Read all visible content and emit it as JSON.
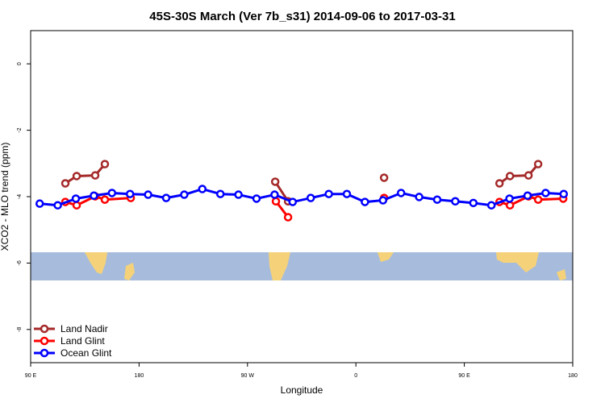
{
  "chart_data": {
    "type": "line",
    "title": "45S-30S March (Ver 7b_s31)   2014-09-06 to 2017-03-31",
    "x_label": "Longitude",
    "y_label": "XCO2 - MLO trend (ppm)",
    "xlim": [
      90,
      540
    ],
    "xticks": [
      {
        "value": 90,
        "label": "90 E"
      },
      {
        "value": 180,
        "label": "180"
      },
      {
        "value": 270,
        "label": "90 W"
      },
      {
        "value": 360,
        "label": "0"
      },
      {
        "value": 450,
        "label": "90 E"
      },
      {
        "value": 540,
        "label": "180"
      }
    ],
    "ylim": [
      -9,
      1
    ],
    "yticks": [
      0,
      -2,
      -4,
      -6,
      -8
    ],
    "legend": "bottom-left",
    "series": [
      {
        "name": "Land Nadir",
        "color": "#a52a2a",
        "x": [
          118.8,
          128.2,
          143.6,
          151.6,
          null,
          293.0,
          303.7,
          null,
          383.4,
          null,
          479.2,
          487.9,
          503.3,
          511.3
        ],
        "values": [
          -3.6,
          -3.38,
          -3.36,
          -3.02,
          null,
          -3.55,
          -4.14,
          null,
          -3.43,
          null,
          -3.6,
          -3.38,
          -3.36,
          -3.02
        ]
      },
      {
        "name": "Land Glint",
        "color": "#ff0000",
        "x": [
          118.8,
          128.2,
          143.6,
          151.6,
          173.1,
          null,
          293.6,
          303.7,
          null,
          383.4,
          null,
          479.2,
          487.9,
          503.3,
          511.3,
          532.1
        ],
        "values": [
          -4.16,
          -4.26,
          -3.99,
          -4.09,
          -4.04,
          null,
          -4.14,
          -4.62,
          null,
          -4.04,
          null,
          -4.16,
          -4.26,
          -3.99,
          -4.09,
          -4.06
        ]
      },
      {
        "name": "Ocean Glint",
        "color": "#0000ff",
        "x": [
          97.5,
          112.5,
          127.5,
          142.5,
          157.5,
          172.5,
          187.5,
          202.5,
          217.5,
          232.5,
          247.5,
          262.5,
          277.5,
          292.5,
          307.5,
          322.5,
          337.5,
          352.5,
          367.5,
          382.5,
          397.5,
          412.5,
          427.5,
          442.5,
          457.5,
          472.5,
          487.5,
          502.5,
          517.5,
          532.5
        ],
        "values": [
          -4.21,
          -4.26,
          -4.06,
          -3.97,
          -3.89,
          -3.92,
          -3.94,
          -4.04,
          -3.94,
          -3.77,
          -3.92,
          -3.94,
          -4.06,
          -3.94,
          -4.16,
          -4.04,
          -3.92,
          -3.92,
          -4.16,
          -4.11,
          -3.89,
          -4.01,
          -4.09,
          -4.14,
          -4.19,
          -4.26,
          -4.06,
          -3.97,
          -3.89,
          -3.92
        ]
      }
    ]
  }
}
